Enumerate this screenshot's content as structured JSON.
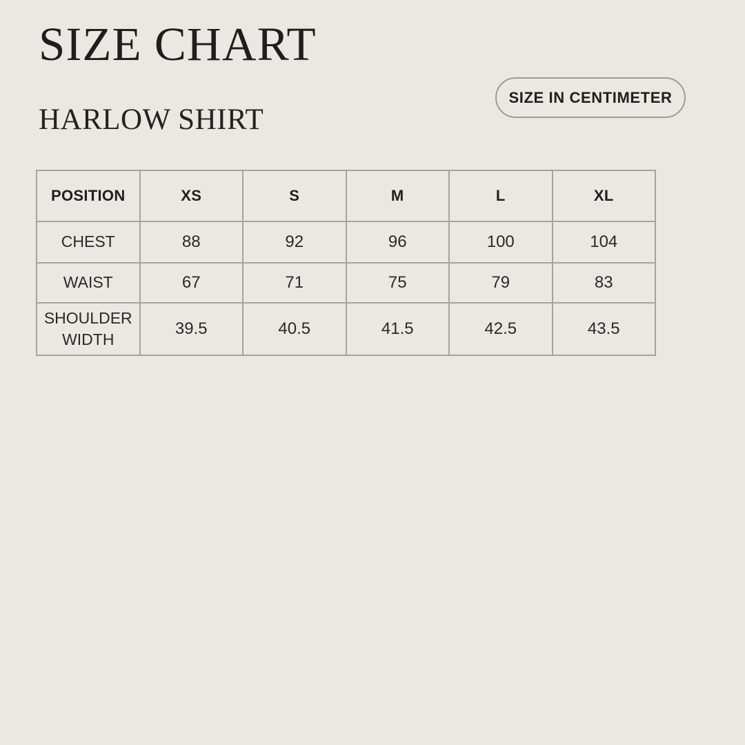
{
  "page": {
    "title": "SIZE CHART",
    "subtitle": "HARLOW SHIRT",
    "unit_badge_label": "SIZE IN CENTIMETER"
  },
  "colors": {
    "background": "#e9e8e3",
    "text_primary": "#1f1e1c",
    "table_border": "#a4a39f",
    "badge_border": "#9c9b96"
  },
  "chart_data": {
    "type": "table",
    "title": "SIZE CHART",
    "subtitle": "HARLOW SHIRT",
    "columns": [
      "POSITION",
      "XS",
      "S",
      "M",
      "L",
      "XL"
    ],
    "rows": [
      {
        "label": "CHEST",
        "values": [
          "88",
          "92",
          "96",
          "100",
          "104"
        ]
      },
      {
        "label": "WAIST",
        "values": [
          "67",
          "71",
          "75",
          "79",
          "83"
        ]
      },
      {
        "label": "SHOULDER WIDTH",
        "values": [
          "39.5",
          "40.5",
          "41.5",
          "42.5",
          "43.5"
        ]
      }
    ]
  }
}
